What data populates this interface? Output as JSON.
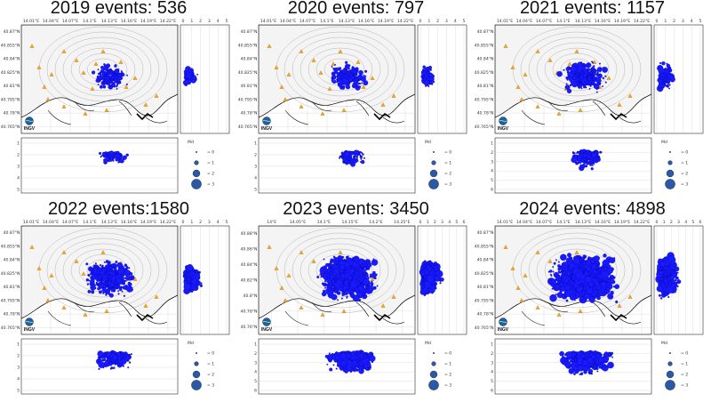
{
  "colors": {
    "event": "#1a1aff",
    "event_edge": "#000099",
    "station": "#f5a623",
    "station_edge": "#b06d00",
    "coast": "#000000",
    "contour": "#999999",
    "grid": "#c8c8c8"
  },
  "logo_text": "INGV",
  "legend_title": "Md",
  "legend_labels": [
    "= 0",
    "= 1",
    "= 2",
    "= 3"
  ],
  "chart_data": [
    {
      "type": "scatter",
      "title": "2019 events: 536",
      "events": 536,
      "lon_ticks": [
        "14.01°E",
        "14.04°E",
        "14.07°E",
        "14.1°E",
        "14.13°E",
        "14.16°E",
        "14.19°E",
        "14.22°E"
      ],
      "lat_ticks": [
        "40.87°N",
        "40.855°N",
        "40.84°N",
        "40.825°N",
        "40.81°N",
        "40.795°N",
        "40.78°N",
        "40.765°N"
      ],
      "mag_ticks": [
        "0",
        "1",
        "2",
        "3",
        "4",
        "5"
      ],
      "depth_ticks": [
        "1",
        "2",
        "3",
        "4",
        "5"
      ],
      "spread": 0.35
    },
    {
      "type": "scatter",
      "title": "2020 events: 797",
      "events": 797,
      "lon_ticks": [
        "14.01°E",
        "14.04°E",
        "14.07°E",
        "14.1°E",
        "14.13°E",
        "14.16°E",
        "14.19°E",
        "14.22°E"
      ],
      "lat_ticks": [
        "40.87°N",
        "40.855°N",
        "40.84°N",
        "40.825°N",
        "40.81°N",
        "40.795°N",
        "40.78°N",
        "40.765°N"
      ],
      "mag_ticks": [
        "0",
        "1",
        "2",
        "3",
        "4",
        "5"
      ],
      "depth_ticks": [
        "1",
        "2",
        "3",
        "4",
        "5"
      ],
      "spread": 0.4
    },
    {
      "type": "scatter",
      "title": "2021 events: 1157",
      "events": 1157,
      "lon_ticks": [
        "14.01°E",
        "14.04°E",
        "14.07°E",
        "14.1°E",
        "14.13°E",
        "14.16°E",
        "14.19°E",
        "14.22°E"
      ],
      "lat_ticks": [
        "40.87°N",
        "40.855°N",
        "40.84°N",
        "40.825°N",
        "40.81°N",
        "40.795°N",
        "40.78°N",
        "40.765°N"
      ],
      "mag_ticks": [
        "0",
        "1",
        "2",
        "3",
        "4",
        "5"
      ],
      "depth_ticks": [
        "1",
        "2",
        "3",
        "4",
        "5",
        "6"
      ],
      "spread": 0.55
    },
    {
      "type": "scatter",
      "title": "2022 events:1580",
      "events": 1580,
      "lon_ticks": [
        "14.01°E",
        "14.04°E",
        "14.07°E",
        "14.1°E",
        "14.13°E",
        "14.16°E",
        "14.19°E",
        "14.22°E"
      ],
      "lat_ticks": [
        "40.87°N",
        "40.855°N",
        "40.84°N",
        "40.825°N",
        "40.81°N",
        "40.795°N",
        "40.78°N",
        "40.765°N"
      ],
      "mag_ticks": [
        "0",
        "1",
        "2",
        "3",
        "4",
        "5"
      ],
      "depth_ticks": [
        "1",
        "2",
        "3",
        "4",
        "5"
      ],
      "spread": 0.65
    },
    {
      "type": "scatter",
      "title": "2023 events: 3450",
      "events": 3450,
      "lon_ticks": [
        "14°E",
        "14.05°E",
        "14.1°E",
        "14.15°E",
        "14.2°E",
        "14.25°E"
      ],
      "lat_ticks": [
        "40.88°N",
        "40.86°N",
        "40.84°N",
        "40.82°N",
        "40.8°N",
        "40.78°N",
        "40.76°N"
      ],
      "mag_ticks": [
        "0",
        "1",
        "2",
        "3",
        "4",
        "5",
        "6"
      ],
      "depth_ticks": [
        "1",
        "2",
        "3",
        "4",
        "5",
        "6"
      ],
      "spread": 0.85
    },
    {
      "type": "scatter",
      "title": "2024 events: 4898",
      "events": 4898,
      "lon_ticks": [
        "14.01°E",
        "14.04°E",
        "14.07°E",
        "14.1°E",
        "14.13°E",
        "14.16°E",
        "14.19°E",
        "14.22°E"
      ],
      "lat_ticks": [
        "40.87°N",
        "40.855°N",
        "40.84°N",
        "40.825°N",
        "40.81°N",
        "40.795°N",
        "40.78°N",
        "40.765°N"
      ],
      "mag_ticks": [
        "0",
        "1",
        "2",
        "3",
        "4",
        "5",
        "6"
      ],
      "depth_ticks": [
        "1",
        "2",
        "3",
        "4",
        "5",
        "6"
      ],
      "spread": 1.0
    }
  ]
}
